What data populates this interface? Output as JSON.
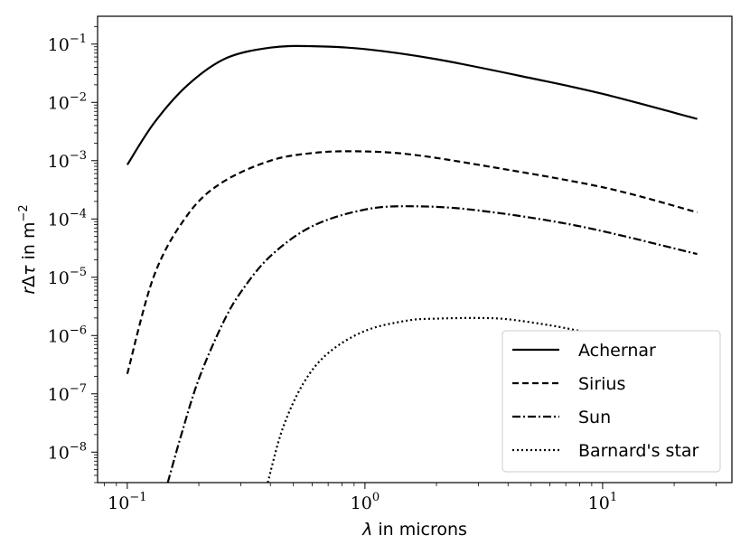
{
  "chart_data": {
    "type": "line",
    "xscale": "log",
    "yscale": "log",
    "xlim": [
      0.075,
      35
    ],
    "ylim": [
      3e-09,
      0.3
    ],
    "xlabel_symbol": "λ",
    "xlabel_text": " in microns",
    "ylabel_parts": {
      "r": "r",
      "delta": "Δ",
      "tau": "τ",
      "mid": " in m",
      "sup": "−2"
    },
    "x_ticks": [
      {
        "base": "10",
        "exp": "−1",
        "value": 0.1
      },
      {
        "base": "10",
        "exp": "0",
        "value": 1
      },
      {
        "base": "10",
        "exp": "1",
        "value": 10
      }
    ],
    "y_ticks": [
      {
        "base": "10",
        "exp": "−1",
        "value": 0.1
      },
      {
        "base": "10",
        "exp": "−2",
        "value": 0.01
      },
      {
        "base": "10",
        "exp": "−3",
        "value": 0.001
      },
      {
        "base": "10",
        "exp": "−4",
        "value": 0.0001
      },
      {
        "base": "10",
        "exp": "−5",
        "value": 1e-05
      },
      {
        "base": "10",
        "exp": "−6",
        "value": 1e-06
      },
      {
        "base": "10",
        "exp": "−7",
        "value": 1e-07
      },
      {
        "base": "10",
        "exp": "−8",
        "value": 1e-08
      }
    ],
    "legend_position": "bottom-right",
    "series": [
      {
        "name": "Achernar",
        "style": "solid",
        "x": [
          0.1,
          0.13,
          0.18,
          0.26,
          0.4,
          0.6,
          1,
          2,
          5,
          10,
          25
        ],
        "y": [
          0.00085,
          0.0045,
          0.02,
          0.057,
          0.087,
          0.092,
          0.082,
          0.055,
          0.026,
          0.014,
          0.0052
        ]
      },
      {
        "name": "Sirius",
        "style": "dashed",
        "x": [
          0.1,
          0.13,
          0.18,
          0.25,
          0.4,
          0.6,
          0.9,
          1.5,
          3,
          10,
          25
        ],
        "y": [
          2.2e-07,
          1.1e-05,
          0.00012,
          0.00042,
          0.001,
          0.00135,
          0.00145,
          0.0013,
          0.00085,
          0.00035,
          0.00013
        ]
      },
      {
        "name": "Sun",
        "style": "dashdot",
        "x": [
          0.148,
          0.17,
          0.2,
          0.25,
          0.3,
          0.4,
          0.6,
          1,
          1.6,
          3,
          8,
          25
        ],
        "y": [
          3e-09,
          2.2e-08,
          1.8e-07,
          1.5e-06,
          5.5e-06,
          2.3e-05,
          7.5e-05,
          0.000145,
          0.000165,
          0.00014,
          7.5e-05,
          2.5e-05
        ]
      },
      {
        "name": "Barnard's star",
        "style": "dotted",
        "x": [
          0.39,
          0.45,
          0.55,
          0.7,
          1,
          1.5,
          2,
          3,
          4,
          6,
          8
        ],
        "y": [
          3e-09,
          2.5e-08,
          1.5e-07,
          5e-07,
          1.2e-06,
          1.8e-06,
          1.95e-06,
          2e-06,
          1.9e-06,
          1.5e-06,
          1.2e-06
        ]
      }
    ]
  }
}
